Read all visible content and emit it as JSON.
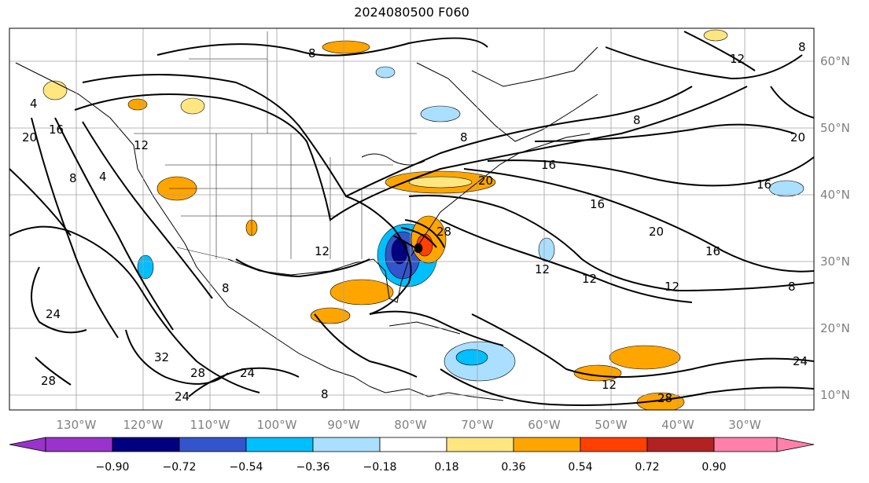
{
  "title": "2024080500 F060",
  "map": {
    "lon_labels": [
      "130°W",
      "120°W",
      "110°W",
      "100°W",
      "90°W",
      "80°W",
      "70°W",
      "60°W",
      "50°W",
      "40°W",
      "30°W"
    ],
    "lat_labels": [
      "60°N",
      "50°N",
      "40°N",
      "30°N",
      "20°N",
      "10°N"
    ],
    "contour_labels": [
      "8",
      "8",
      "8",
      "8",
      "12",
      "12",
      "12",
      "12",
      "12",
      "12",
      "16",
      "16",
      "16",
      "16",
      "16",
      "20",
      "20",
      "20",
      "20",
      "24",
      "24",
      "24",
      "28",
      "28",
      "28",
      "28",
      "32",
      "4",
      "4",
      "8",
      "8",
      "8",
      "8",
      "12",
      "24"
    ]
  },
  "colorbar": {
    "ticks": [
      "−0.90",
      "−0.72",
      "−0.54",
      "−0.36",
      "−0.18",
      "0.18",
      "0.36",
      "0.54",
      "0.72",
      "0.90"
    ],
    "colors": [
      "#9933cc",
      "#000080",
      "#3355cc",
      "#00bfff",
      "#aadfff",
      "#ffffff",
      "#ffe680",
      "#ffa500",
      "#ff4000",
      "#b22222",
      "#ff80aa"
    ]
  }
}
